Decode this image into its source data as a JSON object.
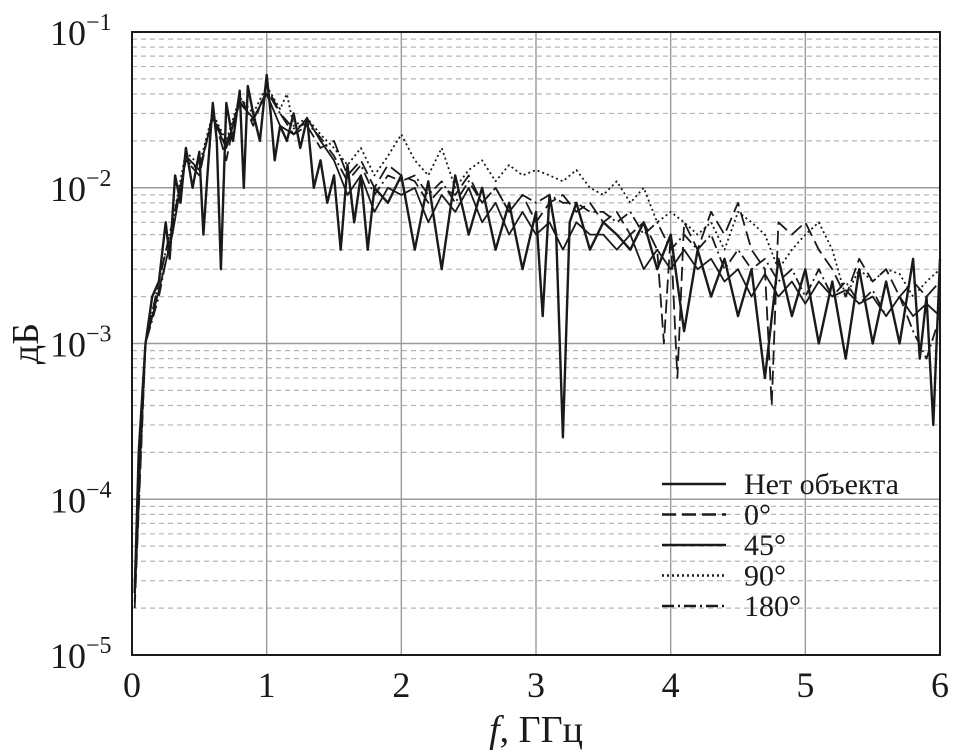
{
  "chart_data": {
    "type": "line",
    "xlabel_italic": "f",
    "xlabel_rest": ", ГГц",
    "ylabel": "дБ",
    "xlim": [
      0,
      6
    ],
    "ylim": [
      1e-05,
      0.1
    ],
    "yscale": "log",
    "grid": true,
    "legend_placement": "bottom-right",
    "x_ticks": [
      "0",
      "1",
      "2",
      "3",
      "4",
      "5",
      "6"
    ],
    "y_ticks": [
      {
        "value": 0.1,
        "base": "10",
        "exp": "−1"
      },
      {
        "value": 0.01,
        "base": "10",
        "exp": "−2"
      },
      {
        "value": 0.001,
        "base": "10",
        "exp": "−3"
      },
      {
        "value": 0.0001,
        "base": "10",
        "exp": "−4"
      },
      {
        "value": 1e-05,
        "base": "10",
        "exp": "−5"
      }
    ],
    "colors": {
      "line": "#1a1a1a",
      "major_grid": "#9a9a9a",
      "minor_grid": "#b5b5b5"
    },
    "series": [
      {
        "name": "Нет объекта",
        "dash": "solid",
        "x": [
          0.02,
          0.05,
          0.1,
          0.15,
          0.2,
          0.25,
          0.28,
          0.32,
          0.36,
          0.4,
          0.45,
          0.5,
          0.53,
          0.56,
          0.6,
          0.63,
          0.66,
          0.7,
          0.75,
          0.8,
          0.83,
          0.86,
          0.9,
          0.95,
          1.0,
          1.03,
          1.06,
          1.1,
          1.15,
          1.2,
          1.25,
          1.3,
          1.35,
          1.4,
          1.45,
          1.5,
          1.55,
          1.6,
          1.65,
          1.7,
          1.75,
          1.8,
          1.9,
          2.0,
          2.1,
          2.2,
          2.3,
          2.4,
          2.5,
          2.6,
          2.7,
          2.8,
          2.9,
          3.0,
          3.05,
          3.1,
          3.15,
          3.2,
          3.25,
          3.3,
          3.4,
          3.5,
          3.6,
          3.7,
          3.8,
          3.9,
          4.0,
          4.1,
          4.2,
          4.3,
          4.4,
          4.5,
          4.6,
          4.7,
          4.8,
          4.9,
          5.0,
          5.1,
          5.2,
          5.3,
          5.4,
          5.5,
          5.6,
          5.7,
          5.8,
          5.85,
          5.9,
          5.95,
          6.0
        ],
        "y": [
          2.5e-05,
          0.0002,
          0.001,
          0.002,
          0.0025,
          0.006,
          0.0035,
          0.012,
          0.008,
          0.018,
          0.01,
          0.017,
          0.005,
          0.012,
          0.035,
          0.02,
          0.003,
          0.035,
          0.02,
          0.042,
          0.01,
          0.045,
          0.03,
          0.02,
          0.053,
          0.03,
          0.015,
          0.025,
          0.02,
          0.03,
          0.018,
          0.028,
          0.01,
          0.015,
          0.008,
          0.012,
          0.004,
          0.014,
          0.006,
          0.012,
          0.004,
          0.01,
          0.008,
          0.012,
          0.004,
          0.011,
          0.003,
          0.012,
          0.005,
          0.01,
          0.004,
          0.008,
          0.003,
          0.007,
          0.0015,
          0.009,
          0.005,
          0.00025,
          0.006,
          0.008,
          0.004,
          0.006,
          0.005,
          0.004,
          0.006,
          0.003,
          0.005,
          0.0012,
          0.004,
          0.002,
          0.0035,
          0.0015,
          0.003,
          0.0006,
          0.0035,
          0.0015,
          0.003,
          0.001,
          0.0025,
          0.0008,
          0.003,
          0.001,
          0.0025,
          0.001,
          0.0035,
          0.0008,
          0.002,
          0.0003,
          0.0035
        ]
      },
      {
        "name": "0°",
        "dash": "dashed",
        "x": [
          0.02,
          0.1,
          0.2,
          0.3,
          0.4,
          0.5,
          0.6,
          0.7,
          0.8,
          0.9,
          1.0,
          1.1,
          1.2,
          1.3,
          1.4,
          1.5,
          1.6,
          1.7,
          1.8,
          1.9,
          2.0,
          2.1,
          2.2,
          2.3,
          2.4,
          2.5,
          2.6,
          2.7,
          2.8,
          2.9,
          3.0,
          3.1,
          3.2,
          3.3,
          3.4,
          3.5,
          3.6,
          3.7,
          3.8,
          3.9,
          3.95,
          4.0,
          4.05,
          4.1,
          4.2,
          4.3,
          4.4,
          4.5,
          4.6,
          4.7,
          4.75,
          4.8,
          4.9,
          5.0,
          5.1,
          5.2,
          5.3,
          5.4,
          5.5,
          5.6,
          5.7,
          5.8,
          5.9,
          6.0
        ],
        "y": [
          2e-05,
          0.001,
          0.0025,
          0.006,
          0.015,
          0.012,
          0.03,
          0.015,
          0.04,
          0.025,
          0.045,
          0.03,
          0.022,
          0.025,
          0.018,
          0.02,
          0.012,
          0.015,
          0.01,
          0.014,
          0.012,
          0.011,
          0.008,
          0.01,
          0.009,
          0.012,
          0.008,
          0.01,
          0.007,
          0.009,
          0.006,
          0.008,
          0.009,
          0.007,
          0.008,
          0.006,
          0.007,
          0.005,
          0.006,
          0.004,
          0.001,
          0.005,
          0.0006,
          0.006,
          0.004,
          0.007,
          0.005,
          0.008,
          0.004,
          0.003,
          0.0004,
          0.006,
          0.005,
          0.006,
          0.004,
          0.003,
          0.002,
          0.0035,
          0.0025,
          0.003,
          0.002,
          0.0025,
          0.002,
          0.0025
        ]
      },
      {
        "name": "45°",
        "dash": "solid",
        "x": [
          0.02,
          0.1,
          0.2,
          0.3,
          0.4,
          0.5,
          0.6,
          0.7,
          0.8,
          0.9,
          1.0,
          1.1,
          1.2,
          1.3,
          1.4,
          1.5,
          1.6,
          1.7,
          1.8,
          1.9,
          2.0,
          2.1,
          2.2,
          2.3,
          2.4,
          2.5,
          2.6,
          2.7,
          2.8,
          2.9,
          3.0,
          3.1,
          3.2,
          3.3,
          3.4,
          3.5,
          3.6,
          3.7,
          3.8,
          3.9,
          4.0,
          4.1,
          4.2,
          4.3,
          4.4,
          4.5,
          4.6,
          4.7,
          4.8,
          4.9,
          5.0,
          5.1,
          5.2,
          5.3,
          5.4,
          5.5,
          5.6,
          5.7,
          5.8,
          5.9,
          6.0
        ],
        "y": [
          3e-05,
          0.001,
          0.0022,
          0.005,
          0.016,
          0.013,
          0.028,
          0.018,
          0.035,
          0.028,
          0.04,
          0.025,
          0.022,
          0.028,
          0.02,
          0.015,
          0.009,
          0.012,
          0.007,
          0.01,
          0.009,
          0.01,
          0.006,
          0.009,
          0.007,
          0.01,
          0.006,
          0.008,
          0.005,
          0.007,
          0.005,
          0.006,
          0.004,
          0.006,
          0.005,
          0.005,
          0.004,
          0.005,
          0.003,
          0.004,
          0.003,
          0.004,
          0.003,
          0.0035,
          0.0025,
          0.003,
          0.002,
          0.0028,
          0.002,
          0.0025,
          0.0018,
          0.0025,
          0.002,
          0.0022,
          0.0018,
          0.002,
          0.0015,
          0.002,
          0.0015,
          0.0018,
          0.0015
        ]
      },
      {
        "name": "90°",
        "dash": "dotted",
        "x": [
          0.02,
          0.1,
          0.2,
          0.3,
          0.4,
          0.5,
          0.6,
          0.7,
          0.8,
          0.9,
          1.0,
          1.1,
          1.15,
          1.2,
          1.3,
          1.4,
          1.5,
          1.6,
          1.7,
          1.8,
          1.9,
          2.0,
          2.1,
          2.2,
          2.3,
          2.4,
          2.5,
          2.6,
          2.7,
          2.8,
          2.9,
          3.0,
          3.1,
          3.2,
          3.3,
          3.4,
          3.5,
          3.6,
          3.7,
          3.8,
          3.9,
          4.0,
          4.1,
          4.2,
          4.3,
          4.4,
          4.5,
          4.6,
          4.7,
          4.8,
          4.9,
          5.0,
          5.1,
          5.2,
          5.3,
          5.4,
          5.5,
          5.6,
          5.7,
          5.8,
          5.9,
          6.0
        ],
        "y": [
          2.5e-05,
          0.001,
          0.0025,
          0.006,
          0.017,
          0.014,
          0.03,
          0.02,
          0.038,
          0.03,
          0.045,
          0.032,
          0.04,
          0.025,
          0.028,
          0.022,
          0.018,
          0.014,
          0.018,
          0.012,
          0.016,
          0.022,
          0.015,
          0.012,
          0.018,
          0.01,
          0.013,
          0.015,
          0.011,
          0.014,
          0.012,
          0.013,
          0.012,
          0.011,
          0.013,
          0.01,
          0.009,
          0.011,
          0.008,
          0.01,
          0.006,
          0.007,
          0.006,
          0.005,
          0.006,
          0.004,
          0.007,
          0.006,
          0.005,
          0.003,
          0.004,
          0.005,
          0.006,
          0.004,
          0.002,
          0.003,
          0.0025,
          0.003,
          0.0028,
          0.002,
          0.0025,
          0.003
        ]
      },
      {
        "name": "180°",
        "dash": "dashdot",
        "x": [
          0.02,
          0.1,
          0.2,
          0.3,
          0.4,
          0.5,
          0.6,
          0.7,
          0.8,
          0.9,
          1.0,
          1.1,
          1.2,
          1.3,
          1.4,
          1.5,
          1.6,
          1.7,
          1.8,
          1.9,
          2.0,
          2.1,
          2.2,
          2.3,
          2.4,
          2.5,
          2.6,
          2.7,
          2.8,
          2.9,
          3.0,
          3.1,
          3.2,
          3.3,
          3.4,
          3.5,
          3.6,
          3.7,
          3.8,
          3.9,
          4.0,
          4.1,
          4.2,
          4.3,
          4.4,
          4.5,
          4.6,
          4.7,
          4.8,
          4.9,
          5.0,
          5.1,
          5.2,
          5.3,
          5.4,
          5.5,
          5.6,
          5.7,
          5.8,
          5.9,
          6.0
        ],
        "y": [
          2.2e-05,
          0.001,
          0.002,
          0.0055,
          0.015,
          0.013,
          0.029,
          0.019,
          0.036,
          0.027,
          0.042,
          0.03,
          0.024,
          0.026,
          0.021,
          0.016,
          0.011,
          0.014,
          0.009,
          0.012,
          0.011,
          0.012,
          0.009,
          0.011,
          0.008,
          0.011,
          0.008,
          0.01,
          0.007,
          0.009,
          0.008,
          0.009,
          0.008,
          0.008,
          0.007,
          0.007,
          0.006,
          0.007,
          0.005,
          0.006,
          0.004,
          0.005,
          0.004,
          0.005,
          0.003,
          0.004,
          0.003,
          0.0035,
          0.0025,
          0.003,
          0.002,
          0.003,
          0.002,
          0.0025,
          0.0018,
          0.0022,
          0.0015,
          0.002,
          0.0012,
          0.0008,
          0.0015
        ]
      }
    ]
  }
}
